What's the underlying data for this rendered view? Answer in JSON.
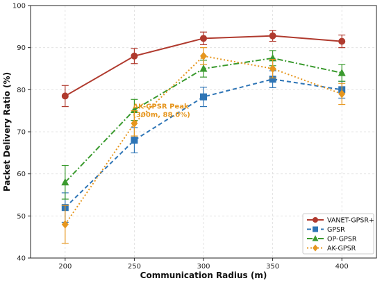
{
  "chart_data": {
    "type": "line",
    "xlabel": "Communication Radius (m)",
    "ylabel": "Packet Delivery Ratio (%)",
    "x": [
      200,
      250,
      300,
      350,
      400
    ],
    "x_ticks": [
      "200",
      "250",
      "300",
      "350",
      "400"
    ],
    "y_ticks": [
      "40",
      "50",
      "60",
      "70",
      "80",
      "90",
      "100"
    ],
    "xlim": [
      175,
      425
    ],
    "ylim": [
      40,
      100
    ],
    "grid": true,
    "legend_position": "bottom-right",
    "series": [
      {
        "name": "VANET-GPSR+",
        "color": "#b03a2e",
        "marker": "circle",
        "dash": "solid",
        "values": [
          78.5,
          88,
          92.2,
          92.8,
          91.5
        ],
        "errors": [
          2.5,
          1.8,
          1.5,
          1.3,
          1.5
        ]
      },
      {
        "name": "GPSR",
        "color": "#2e75b6",
        "marker": "square",
        "dash": "dashed",
        "values": [
          52,
          68,
          78.3,
          82.5,
          80
        ],
        "errors": [
          3.5,
          3,
          2.3,
          2,
          2
        ]
      },
      {
        "name": "OP-GPSR",
        "color": "#3a9a2e",
        "marker": "triangle",
        "dash": "dashdot",
        "values": [
          58,
          75.2,
          85,
          87.5,
          84
        ],
        "errors": [
          4,
          2.5,
          2,
          1.8,
          2
        ]
      },
      {
        "name": "AK-GPSR",
        "color": "#e6961e",
        "marker": "diamond",
        "dash": "dotted",
        "values": [
          48,
          72,
          88,
          85,
          79
        ],
        "errors": [
          4.5,
          3,
          2,
          2.2,
          2.5
        ]
      }
    ],
    "annotations": [
      {
        "text_lines": [
          "AK-GPSR Peak",
          "(300m, 88.0%)"
        ],
        "color": "#e6961e",
        "x": 250,
        "y": 75.5
      }
    ]
  }
}
